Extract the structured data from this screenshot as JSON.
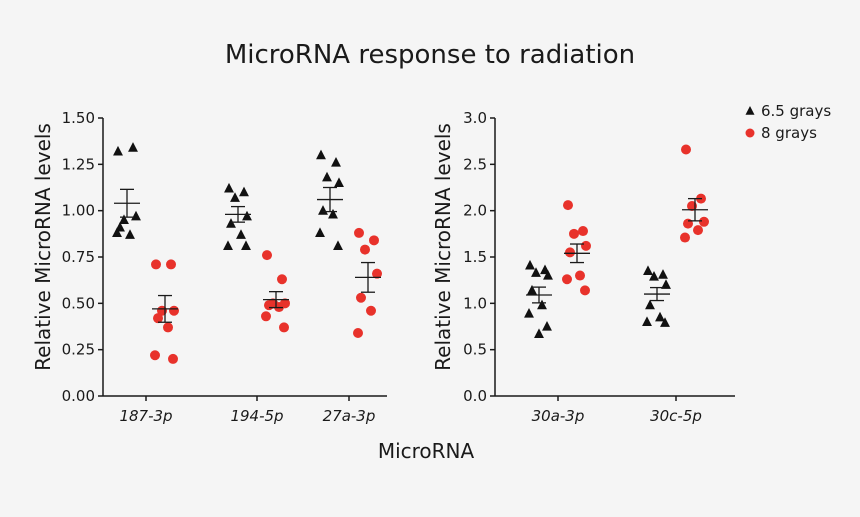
{
  "chart_data": {
    "type": "scatter",
    "title": "MicroRNA response to radiation",
    "xlabel": "MicroRNA",
    "legend": {
      "placement": "top-right",
      "entries": [
        {
          "name": "6.5 grays",
          "marker": "triangle",
          "color": "#111111"
        },
        {
          "name": "8 grays",
          "marker": "circle",
          "color": "#e8322b"
        }
      ]
    },
    "panels": [
      {
        "ylabel": "Relative MicroRNA levels",
        "ylim": [
          0,
          1.5
        ],
        "yticks": [
          "0.00",
          "0.25",
          "0.50",
          "0.75",
          "1.00",
          "1.25",
          "1.50"
        ],
        "categories": [
          "187-3p",
          "194-5p",
          "27a-3p"
        ],
        "series": [
          {
            "name": "6.5 grays",
            "points": [
              [
                1.32,
                1.34,
                0.95,
                0.97,
                0.91,
                0.87,
                0.88
              ],
              [
                1.12,
                1.1,
                1.07,
                0.97,
                0.93,
                0.87,
                0.81,
                0.81
              ],
              [
                1.3,
                1.26,
                1.18,
                1.15,
                1.0,
                0.98,
                0.88,
                0.81
              ]
            ],
            "mean": [
              1.04,
              0.98,
              1.06
            ],
            "sem": [
              0.075,
              0.042,
              0.065
            ]
          },
          {
            "name": "8 grays",
            "points": [
              [
                0.71,
                0.71,
                0.46,
                0.46,
                0.42,
                0.37,
                0.22,
                0.2
              ],
              [
                0.76,
                0.63,
                0.5,
                0.5,
                0.49,
                0.48,
                0.43,
                0.37
              ],
              [
                0.88,
                0.84,
                0.79,
                0.66,
                0.53,
                0.46,
                0.34
              ]
            ],
            "mean": [
              0.47,
              0.52,
              0.64
            ],
            "sem": [
              0.072,
              0.043,
              0.08
            ]
          }
        ]
      },
      {
        "ylabel": "Relative MicroRNA levels",
        "ylim": [
          0,
          3.0
        ],
        "yticks": [
          "0.0",
          "0.5",
          "1.0",
          "1.5",
          "2.0",
          "2.5",
          "3.0"
        ],
        "categories": [
          "30a-3p",
          "30c-5p"
        ],
        "series": [
          {
            "name": "6.5 grays",
            "points": [
              [
                1.41,
                1.36,
                1.33,
                1.3,
                1.14,
                0.98,
                0.89,
                0.75,
                0.67
              ],
              [
                1.35,
                1.31,
                1.29,
                1.2,
                0.98,
                0.85,
                0.8,
                0.79
              ]
            ],
            "mean": [
              1.09,
              1.1
            ],
            "sem": [
              0.085,
              0.07
            ]
          },
          {
            "name": "8 grays",
            "points": [
              [
                2.06,
                1.78,
                1.75,
                1.62,
                1.55,
                1.3,
                1.26,
                1.14
              ],
              [
                2.66,
                2.13,
                2.05,
                1.88,
                1.86,
                1.79,
                1.71
              ]
            ],
            "mean": [
              1.54,
              2.01
            ],
            "sem": [
              0.1,
              0.12
            ]
          }
        ]
      }
    ]
  }
}
